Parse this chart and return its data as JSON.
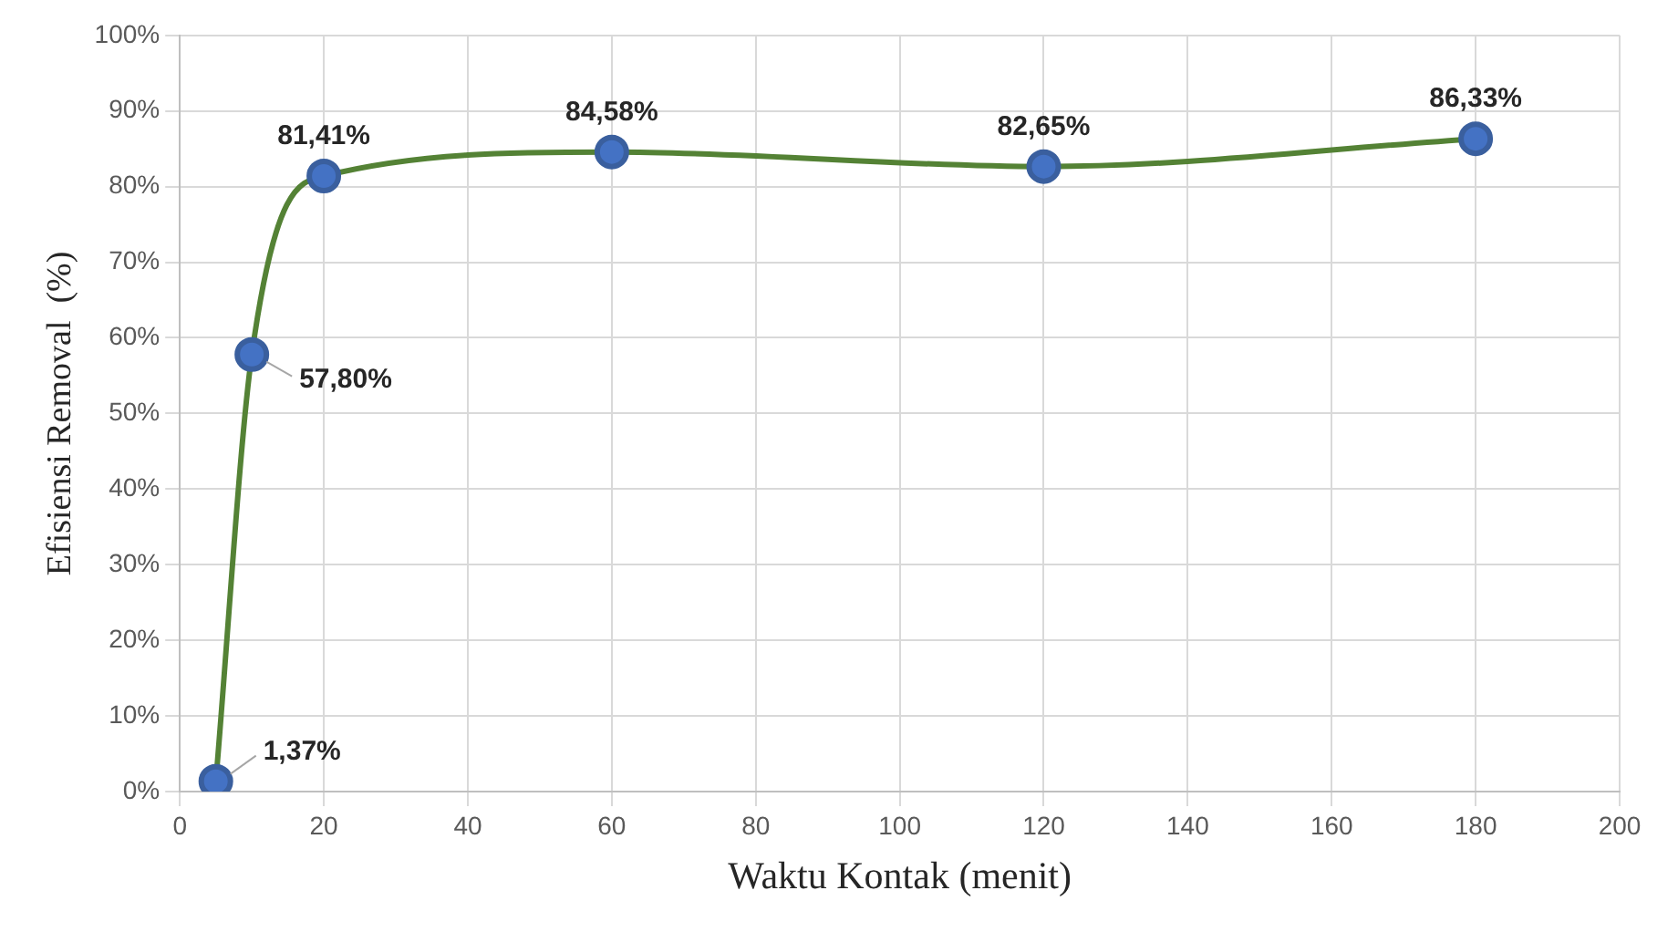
{
  "chart_data": {
    "type": "line",
    "xlabel": "Waktu Kontak (menit)",
    "ylabel": "Efisiensi Removal  (%)",
    "x": [
      5,
      10,
      20,
      60,
      120,
      180
    ],
    "series": [
      {
        "color": "#548235",
        "colors": [
          "#4472c4",
          "#4472c4",
          "#4472c4",
          "#4472c4",
          "#4472c4",
          "#4472c4"
        ],
        "values": [
          1.37,
          57.8,
          81.41,
          84.58,
          82.65,
          86.33
        ],
        "value_labels": [
          "1,37%",
          "57,80%",
          "81,41%",
          "84,58%",
          "82,65%",
          "86,33%"
        ]
      }
    ],
    "xlim": [
      0,
      200
    ],
    "xticks": [
      0,
      20,
      40,
      60,
      80,
      100,
      120,
      140,
      160,
      180,
      200
    ],
    "ylim": [
      0,
      100
    ],
    "yticks": [
      {
        "value": 0,
        "label": "0%"
      },
      {
        "value": 10,
        "label": "10%"
      },
      {
        "value": 20,
        "label": "20%"
      },
      {
        "value": 30,
        "label": "30%"
      },
      {
        "value": 40,
        "label": "40%"
      },
      {
        "value": 50,
        "label": "50%"
      },
      {
        "value": 60,
        "label": "60%"
      },
      {
        "value": 70,
        "label": "70%"
      },
      {
        "value": 80,
        "label": "80%"
      },
      {
        "value": 90,
        "label": "90%"
      },
      {
        "value": 100,
        "label": "100%"
      }
    ],
    "grid": true,
    "marker": "circle",
    "legend": false
  }
}
